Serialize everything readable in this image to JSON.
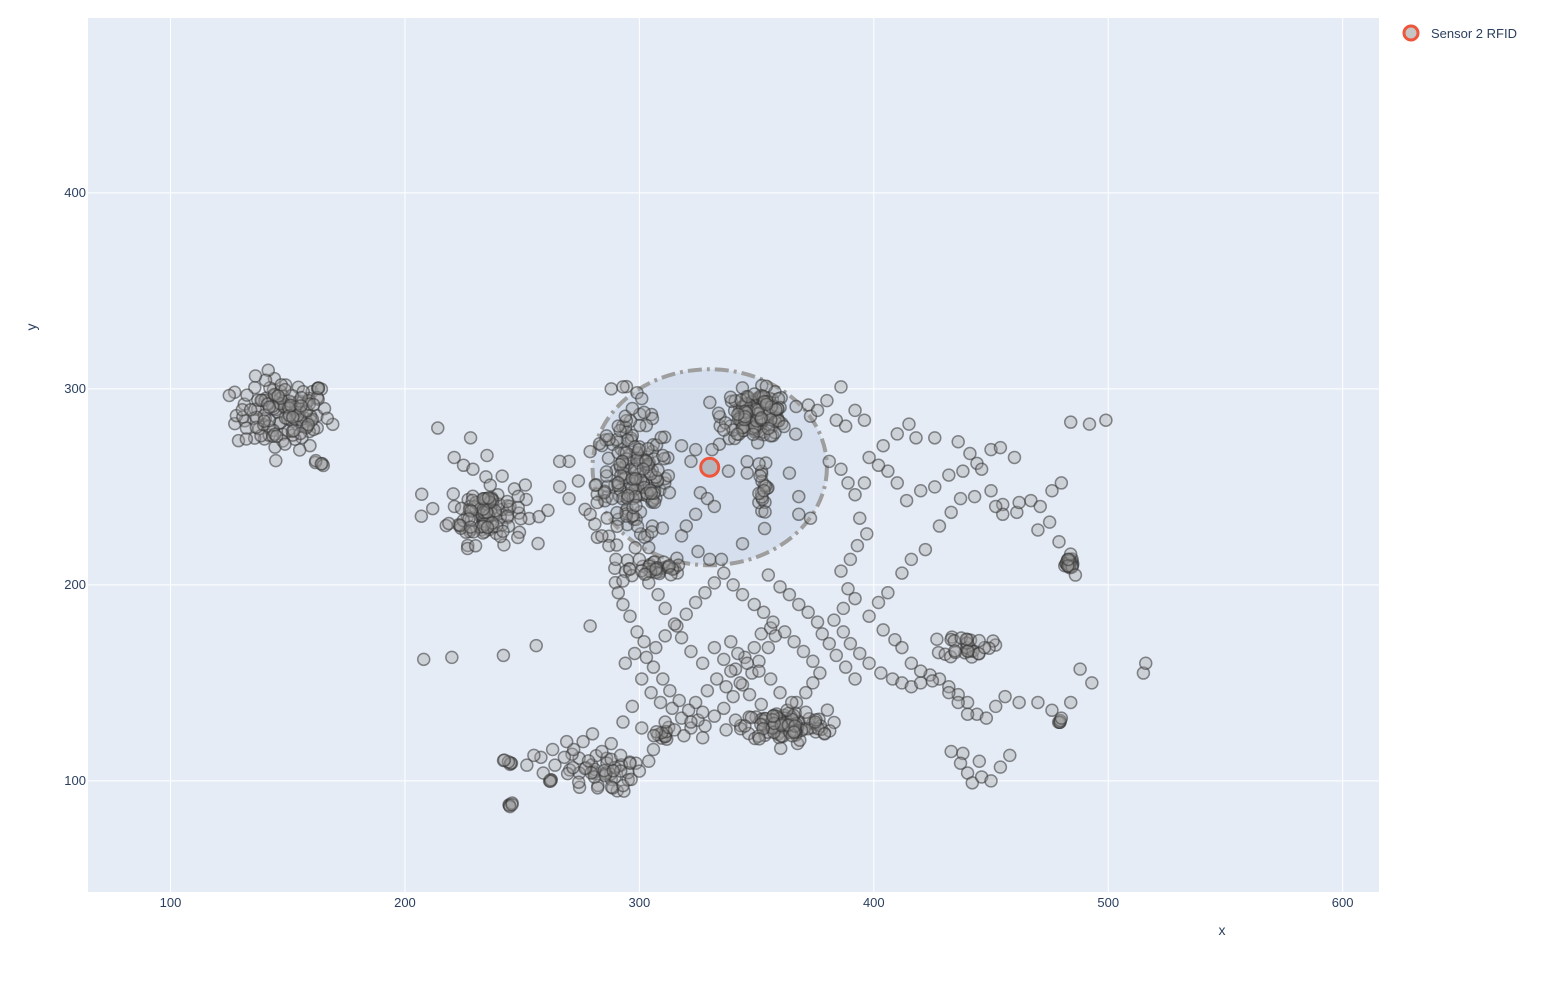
{
  "chart_data": {
    "type": "scatter",
    "title": "",
    "xlabel": "x",
    "ylabel": "y",
    "xlim": [
      64.8,
      615.5
    ],
    "ylim": [
      43.3,
      489.2
    ],
    "x_ticks": [
      "100",
      "200",
      "300",
      "400",
      "500",
      "600"
    ],
    "y_ticks": [
      "100",
      "200",
      "300",
      "400"
    ],
    "grid": true,
    "legend_position": "top-right",
    "colors": {
      "plot_bg": "#e5ecf6",
      "point_fill": "#9e9e9e",
      "point_stroke": "#333333",
      "sensor": "#ef553b",
      "zone_fill": "#c8d6e5",
      "zone_stroke": "#9e9e9e"
    },
    "sensor": {
      "name": "Sensor 2 RFID",
      "x": 330,
      "y": 260,
      "radius": 50
    },
    "clusters": [
      {
        "cx": 148,
        "cy": 287,
        "sx": 10,
        "sy": 9,
        "n": 140
      },
      {
        "cx": 235,
        "cy": 237,
        "sx": 8,
        "sy": 8,
        "n": 110
      },
      {
        "cx": 298,
        "cy": 252,
        "sx": 8,
        "sy": 15,
        "n": 170
      },
      {
        "cx": 350,
        "cy": 287,
        "sx": 7,
        "sy": 6,
        "n": 140
      },
      {
        "cx": 362,
        "cy": 128,
        "sx": 9,
        "sy": 4,
        "n": 110
      },
      {
        "cx": 307,
        "cy": 208,
        "sx": 6,
        "sy": 2,
        "n": 35
      },
      {
        "cx": 440,
        "cy": 169,
        "sx": 5,
        "sy": 3,
        "n": 30
      },
      {
        "cx": 483,
        "cy": 211,
        "sx": 1.5,
        "sy": 2,
        "n": 20
      },
      {
        "cx": 352,
        "cy": 246,
        "sx": 1.2,
        "sy": 9,
        "n": 20
      },
      {
        "cx": 283,
        "cy": 104,
        "sx": 7,
        "sy": 5,
        "n": 45
      },
      {
        "cx": 244,
        "cy": 110,
        "sx": 1,
        "sy": 1,
        "n": 6
      },
      {
        "cx": 245,
        "cy": 88,
        "sx": 0.5,
        "sy": 0.5,
        "n": 5
      },
      {
        "cx": 262,
        "cy": 100,
        "sx": 0.5,
        "sy": 0.5,
        "n": 4
      },
      {
        "cx": 479,
        "cy": 130,
        "sx": 0.4,
        "sy": 0.4,
        "n": 4
      },
      {
        "cx": 164,
        "cy": 262,
        "sx": 1,
        "sy": 1,
        "n": 5
      },
      {
        "cx": 310,
        "cy": 123,
        "sx": 3,
        "sy": 2,
        "n": 12
      }
    ],
    "scatter_points": [
      [
        214,
        280
      ],
      [
        228,
        275
      ],
      [
        235,
        266
      ],
      [
        221,
        265
      ],
      [
        225,
        261
      ],
      [
        229,
        259
      ],
      [
        207,
        235
      ],
      [
        208,
        162
      ],
      [
        220,
        163
      ],
      [
        242,
        164
      ],
      [
        256,
        169
      ],
      [
        261,
        238
      ],
      [
        279,
        179
      ],
      [
        288,
        300
      ],
      [
        293,
        301
      ],
      [
        299,
        298
      ],
      [
        302,
        288
      ],
      [
        310,
        266
      ],
      [
        318,
        271
      ],
      [
        324,
        269
      ],
      [
        331,
        269
      ],
      [
        336,
        279
      ],
      [
        342,
        287
      ],
      [
        322,
        263
      ],
      [
        326,
        247
      ],
      [
        329,
        244
      ],
      [
        332,
        240
      ],
      [
        324,
        236
      ],
      [
        320,
        230
      ],
      [
        318,
        225
      ],
      [
        325,
        217
      ],
      [
        330,
        213
      ],
      [
        335,
        213
      ],
      [
        344,
        221
      ],
      [
        346,
        257
      ],
      [
        338,
        258
      ],
      [
        368,
        245
      ],
      [
        364,
        257
      ],
      [
        368,
        236
      ],
      [
        373,
        234
      ],
      [
        373,
        286
      ],
      [
        376,
        289
      ],
      [
        380,
        294
      ],
      [
        384,
        284
      ],
      [
        386,
        301
      ],
      [
        388,
        281
      ],
      [
        392,
        289
      ],
      [
        396,
        284
      ],
      [
        381,
        263
      ],
      [
        386,
        259
      ],
      [
        389,
        252
      ],
      [
        392,
        246
      ],
      [
        396,
        252
      ],
      [
        394,
        234
      ],
      [
        397,
        226
      ],
      [
        393,
        220
      ],
      [
        390,
        213
      ],
      [
        386,
        207
      ],
      [
        389,
        198
      ],
      [
        392,
        193
      ],
      [
        387,
        188
      ],
      [
        383,
        182
      ],
      [
        387,
        176
      ],
      [
        390,
        170
      ],
      [
        394,
        165
      ],
      [
        398,
        160
      ],
      [
        403,
        155
      ],
      [
        408,
        152
      ],
      [
        412,
        150
      ],
      [
        416,
        148
      ],
      [
        420,
        150
      ],
      [
        424,
        154
      ],
      [
        428,
        152
      ],
      [
        432,
        148
      ],
      [
        436,
        144
      ],
      [
        440,
        140
      ],
      [
        444,
        134
      ],
      [
        448,
        132
      ],
      [
        452,
        138
      ],
      [
        456,
        143
      ],
      [
        462,
        140
      ],
      [
        470,
        140
      ],
      [
        476,
        136
      ],
      [
        480,
        132
      ],
      [
        484,
        140
      ],
      [
        488,
        157
      ],
      [
        493,
        150
      ],
      [
        515,
        155
      ],
      [
        516,
        160
      ],
      [
        484,
        283
      ],
      [
        492,
        282
      ],
      [
        499,
        284
      ],
      [
        450,
        269
      ],
      [
        454,
        270
      ],
      [
        460,
        265
      ],
      [
        444,
        262
      ],
      [
        438,
        258
      ],
      [
        432,
        256
      ],
      [
        426,
        250
      ],
      [
        420,
        248
      ],
      [
        414,
        243
      ],
      [
        410,
        252
      ],
      [
        406,
        258
      ],
      [
        402,
        261
      ],
      [
        398,
        265
      ],
      [
        404,
        271
      ],
      [
        410,
        277
      ],
      [
        415,
        282
      ],
      [
        418,
        275
      ],
      [
        426,
        275
      ],
      [
        436,
        273
      ],
      [
        441,
        267
      ],
      [
        446,
        259
      ],
      [
        450,
        248
      ],
      [
        455,
        241
      ],
      [
        461,
        237
      ],
      [
        467,
        243
      ],
      [
        471,
        240
      ],
      [
        476,
        248
      ],
      [
        480,
        252
      ],
      [
        475,
        232
      ],
      [
        470,
        228
      ],
      [
        479,
        222
      ],
      [
        483,
        213
      ],
      [
        486,
        205
      ],
      [
        462,
        242
      ],
      [
        455,
        236
      ],
      [
        452,
        240
      ],
      [
        443,
        245
      ],
      [
        437,
        244
      ],
      [
        433,
        237
      ],
      [
        428,
        230
      ],
      [
        422,
        218
      ],
      [
        416,
        213
      ],
      [
        412,
        206
      ],
      [
        406,
        196
      ],
      [
        402,
        191
      ],
      [
        398,
        184
      ],
      [
        404,
        177
      ],
      [
        409,
        172
      ],
      [
        412,
        168
      ],
      [
        416,
        160
      ],
      [
        420,
        156
      ],
      [
        425,
        151
      ],
      [
        432,
        145
      ],
      [
        436,
        140
      ],
      [
        440,
        134
      ],
      [
        438,
        114
      ],
      [
        445,
        110
      ],
      [
        440,
        104
      ],
      [
        442,
        99
      ],
      [
        446,
        102
      ],
      [
        450,
        100
      ],
      [
        454,
        107
      ],
      [
        458,
        113
      ],
      [
        437,
        109
      ],
      [
        433,
        115
      ],
      [
        299,
        176
      ],
      [
        302,
        171
      ],
      [
        298,
        165
      ],
      [
        294,
        160
      ],
      [
        301,
        152
      ],
      [
        305,
        145
      ],
      [
        309,
        140
      ],
      [
        314,
        137
      ],
      [
        318,
        132
      ],
      [
        322,
        127
      ],
      [
        327,
        122
      ],
      [
        324,
        140
      ],
      [
        329,
        146
      ],
      [
        333,
        152
      ],
      [
        337,
        148
      ],
      [
        341,
        157
      ],
      [
        345,
        163
      ],
      [
        349,
        168
      ],
      [
        352,
        175
      ],
      [
        356,
        178
      ],
      [
        358,
        174
      ],
      [
        355,
        168
      ],
      [
        351,
        161
      ],
      [
        348,
        155
      ],
      [
        344,
        149
      ],
      [
        340,
        143
      ],
      [
        336,
        137
      ],
      [
        332,
        133
      ],
      [
        328,
        128
      ],
      [
        325,
        131
      ],
      [
        321,
        136
      ],
      [
        317,
        141
      ],
      [
        313,
        146
      ],
      [
        310,
        152
      ],
      [
        306,
        158
      ],
      [
        303,
        163
      ],
      [
        307,
        168
      ],
      [
        311,
        174
      ],
      [
        316,
        179
      ],
      [
        320,
        185
      ],
      [
        324,
        191
      ],
      [
        328,
        196
      ],
      [
        332,
        201
      ],
      [
        336,
        206
      ],
      [
        340,
        200
      ],
      [
        344,
        195
      ],
      [
        349,
        190
      ],
      [
        353,
        186
      ],
      [
        357,
        181
      ],
      [
        362,
        176
      ],
      [
        366,
        171
      ],
      [
        370,
        166
      ],
      [
        374,
        161
      ],
      [
        377,
        155
      ],
      [
        374,
        150
      ],
      [
        371,
        145
      ],
      [
        367,
        140
      ],
      [
        363,
        136
      ],
      [
        357,
        133
      ],
      [
        352,
        139
      ],
      [
        347,
        144
      ],
      [
        343,
        150
      ],
      [
        339,
        156
      ],
      [
        336,
        162
      ],
      [
        332,
        168
      ],
      [
        296,
        184
      ],
      [
        293,
        190
      ],
      [
        291,
        196
      ],
      [
        293,
        202
      ],
      [
        296,
        208
      ],
      [
        300,
        213
      ],
      [
        304,
        219
      ],
      [
        290,
        213
      ],
      [
        287,
        220
      ],
      [
        284,
        225
      ],
      [
        281,
        231
      ],
      [
        279,
        236
      ],
      [
        282,
        242
      ],
      [
        285,
        247
      ],
      [
        270,
        244
      ],
      [
        266,
        250
      ],
      [
        274,
        253
      ],
      [
        270,
        263
      ],
      [
        266,
        263
      ],
      [
        279,
        268
      ],
      [
        283,
        272
      ],
      [
        286,
        276
      ],
      [
        291,
        281
      ],
      [
        294,
        286
      ],
      [
        297,
        290
      ],
      [
        301,
        295
      ],
      [
        259,
        104
      ],
      [
        264,
        108
      ],
      [
        268,
        112
      ],
      [
        272,
        116
      ],
      [
        276,
        120
      ],
      [
        280,
        124
      ],
      [
        269,
        120
      ],
      [
        263,
        116
      ],
      [
        258,
        112
      ],
      [
        252,
        108
      ],
      [
        255,
        113
      ],
      [
        284,
        115
      ],
      [
        288,
        119
      ],
      [
        292,
        113
      ],
      [
        296,
        109
      ],
      [
        300,
        105
      ],
      [
        304,
        110
      ],
      [
        306,
        116
      ],
      [
        293,
        130
      ],
      [
        297,
        138
      ],
      [
        301,
        127
      ],
      [
        311,
        130
      ],
      [
        315,
        126
      ],
      [
        319,
        123
      ],
      [
        322,
        130
      ],
      [
        327,
        135
      ],
      [
        337,
        126
      ],
      [
        341,
        131
      ],
      [
        345,
        128
      ],
      [
        379,
        124
      ],
      [
        375,
        130
      ],
      [
        371,
        135
      ],
      [
        365,
        140
      ],
      [
        360,
        145
      ],
      [
        356,
        152
      ],
      [
        351,
        156
      ],
      [
        346,
        160
      ],
      [
        342,
        165
      ],
      [
        339,
        171
      ],
      [
        327,
        160
      ],
      [
        322,
        166
      ],
      [
        318,
        173
      ],
      [
        315,
        180
      ],
      [
        311,
        188
      ],
      [
        308,
        195
      ],
      [
        304,
        201
      ],
      [
        355,
        205
      ],
      [
        360,
        199
      ],
      [
        364,
        195
      ],
      [
        368,
        190
      ],
      [
        372,
        186
      ],
      [
        376,
        181
      ],
      [
        378,
        175
      ],
      [
        381,
        170
      ],
      [
        384,
        164
      ],
      [
        388,
        158
      ],
      [
        392,
        152
      ]
    ]
  }
}
